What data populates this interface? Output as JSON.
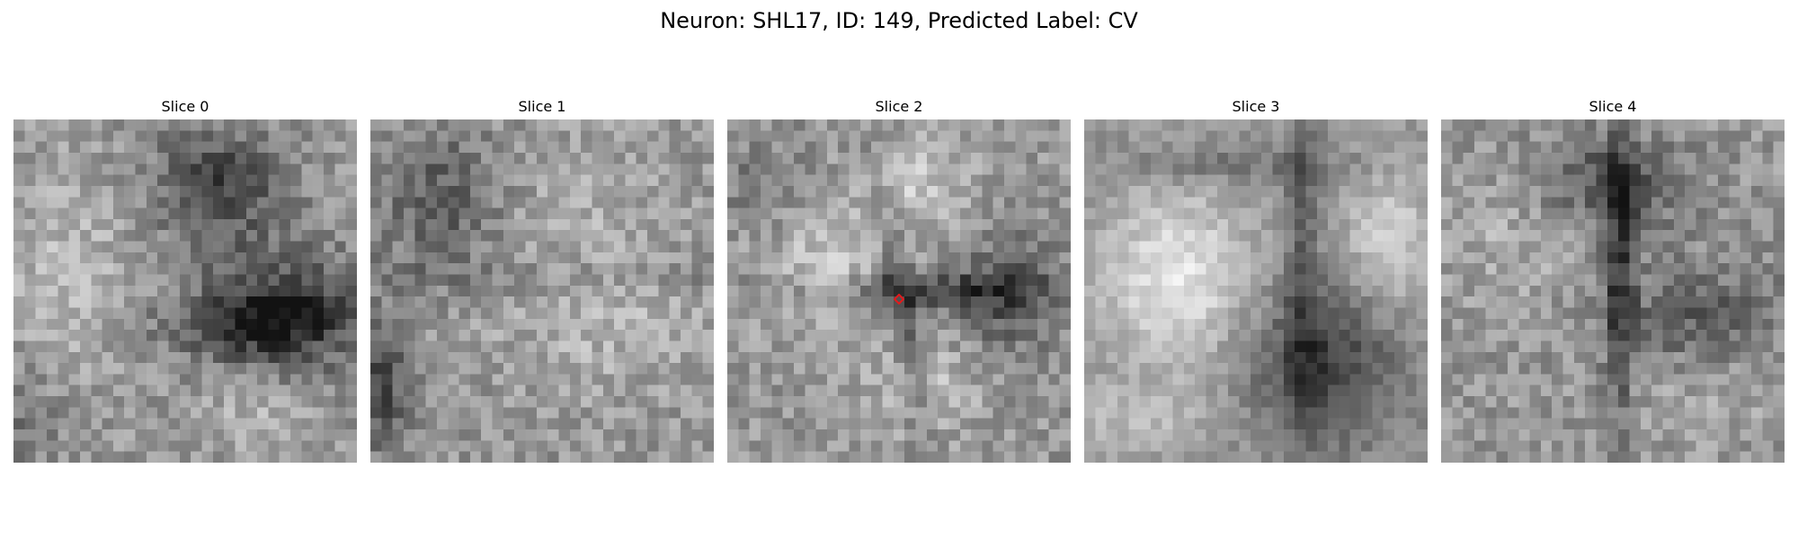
{
  "figure": {
    "title": "Neuron: SHL17, ID: 149, Predicted Label: CV"
  },
  "slices": [
    {
      "label": "Slice 0",
      "has_marker": false
    },
    {
      "label": "Slice 1",
      "has_marker": false
    },
    {
      "label": "Slice 2",
      "has_marker": true
    },
    {
      "label": "Slice 3",
      "has_marker": false
    },
    {
      "label": "Slice 4",
      "has_marker": false
    }
  ],
  "marker": {
    "shape": "diamond",
    "color": "#e41a1c"
  },
  "image_style": {
    "colormap": "grayscale"
  }
}
